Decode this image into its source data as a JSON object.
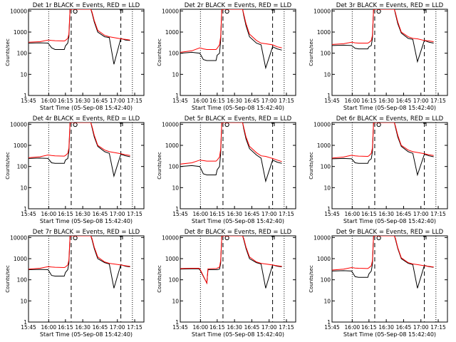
{
  "colors": {
    "events": "#000000",
    "lld": "#ff0000",
    "background": "#ffffff",
    "axes": "#000000"
  },
  "common": {
    "xlabel": "Start Time (05-Sep-08 15:42:40)",
    "ylabel": "Counts/sec",
    "x_ticks": [
      "15:45",
      "16:00",
      "16:15",
      "16:30",
      "16:45",
      "17:00",
      "17:15"
    ],
    "y_ticks": [
      "1",
      "10",
      "100",
      "1000",
      "10000"
    ],
    "series_names": [
      "Events",
      "LLD"
    ]
  },
  "chart_data": [
    {
      "type": "line",
      "title": "Det 1r BLACK = Events, RED = LLD",
      "xlabel": "Start Time (05-Sep-08 15:42:40)",
      "ylabel": "Counts/sec",
      "y_scale": "log",
      "ylim": [
        1,
        12000
      ],
      "xlim_minutes": [
        0,
        100
      ],
      "x": [
        0,
        10,
        17,
        20,
        23,
        31,
        32,
        34,
        35,
        36,
        40,
        45,
        47,
        50,
        53,
        54,
        55,
        57,
        60,
        66,
        70,
        74,
        80,
        84,
        88
      ],
      "series": [
        {
          "name": "Events",
          "values": [
            300,
            310,
            300,
            180,
            150,
            150,
            220,
            300,
            600,
            12000,
            12000,
            12000,
            12000,
            12000,
            12000,
            12000,
            8000,
            3000,
            1000,
            600,
            550,
            30,
            500,
            420,
            400
          ]
        },
        {
          "name": "LLD",
          "values": [
            330,
            350,
            420,
            400,
            390,
            380,
            400,
            500,
            800,
            12000,
            12000,
            12000,
            12000,
            12000,
            12000,
            12000,
            9000,
            3500,
            1200,
            700,
            600,
            550,
            480,
            450,
            420
          ]
        }
      ]
    },
    {
      "type": "line",
      "title": "Det 2r BLACK = Events, RED = LLD",
      "xlabel": "Start Time (05-Sep-08 15:42:40)",
      "ylabel": "Counts/sec",
      "y_scale": "log",
      "ylim": [
        1,
        12000
      ],
      "xlim_minutes": [
        0,
        100
      ],
      "x": [
        0,
        10,
        17,
        20,
        23,
        31,
        32,
        34,
        35,
        36,
        40,
        45,
        47,
        50,
        53,
        54,
        55,
        57,
        60,
        66,
        70,
        74,
        80,
        84,
        88
      ],
      "series": [
        {
          "name": "Events",
          "values": [
            100,
            110,
            100,
            50,
            45,
            45,
            80,
            100,
            400,
            12000,
            12000,
            12000,
            12000,
            12000,
            12000,
            12000,
            6000,
            2000,
            600,
            300,
            250,
            20,
            200,
            160,
            140
          ]
        },
        {
          "name": "LLD",
          "values": [
            110,
            130,
            180,
            160,
            150,
            150,
            170,
            250,
            600,
            12000,
            12000,
            12000,
            12000,
            12000,
            12000,
            12000,
            7000,
            2500,
            800,
            400,
            300,
            280,
            250,
            200,
            180
          ]
        }
      ]
    },
    {
      "type": "line",
      "title": "Det 3r BLACK = Events, RED = LLD",
      "xlabel": "Start Time (05-Sep-08 15:42:40)",
      "ylabel": "Counts/sec",
      "y_scale": "log",
      "ylim": [
        1,
        12000
      ],
      "xlim_minutes": [
        0,
        100
      ],
      "x": [
        0,
        10,
        17,
        20,
        23,
        31,
        32,
        34,
        35,
        36,
        40,
        45,
        47,
        50,
        53,
        54,
        55,
        57,
        60,
        66,
        70,
        74,
        80,
        84,
        88
      ],
      "series": [
        {
          "name": "Events",
          "values": [
            230,
            240,
            230,
            170,
            160,
            160,
            200,
            230,
            500,
            12000,
            12000,
            12000,
            12000,
            12000,
            12000,
            12000,
            7000,
            2500,
            900,
            500,
            450,
            40,
            400,
            330,
            300
          ]
        },
        {
          "name": "LLD",
          "values": [
            260,
            280,
            330,
            310,
            300,
            300,
            320,
            400,
            700,
            12000,
            12000,
            12000,
            12000,
            12000,
            12000,
            12000,
            8000,
            3000,
            1000,
            600,
            500,
            480,
            400,
            380,
            350
          ]
        }
      ]
    },
    {
      "type": "line",
      "title": "Det 4r BLACK = Events, RED = LLD",
      "xlabel": "Start Time (05-Sep-08 15:42:40)",
      "ylabel": "Counts/sec",
      "y_scale": "log",
      "ylim": [
        1,
        12000
      ],
      "xlim_minutes": [
        0,
        100
      ],
      "x": [
        0,
        10,
        17,
        20,
        23,
        31,
        32,
        34,
        35,
        36,
        40,
        45,
        47,
        50,
        53,
        54,
        55,
        57,
        60,
        66,
        70,
        74,
        80,
        84,
        88
      ],
      "series": [
        {
          "name": "Events",
          "values": [
            240,
            250,
            240,
            150,
            140,
            140,
            200,
            240,
            500,
            12000,
            12000,
            12000,
            12000,
            12000,
            12000,
            12000,
            7000,
            2500,
            900,
            500,
            420,
            35,
            380,
            320,
            290
          ]
        },
        {
          "name": "LLD",
          "values": [
            260,
            290,
            350,
            330,
            320,
            310,
            330,
            420,
            750,
            12000,
            12000,
            12000,
            12000,
            12000,
            12000,
            12000,
            8000,
            3000,
            1000,
            600,
            500,
            460,
            400,
            360,
            330
          ]
        }
      ]
    },
    {
      "type": "line",
      "title": "Det 5r BLACK = Events, RED = LLD",
      "xlabel": "Start Time (05-Sep-08 15:42:40)",
      "ylabel": "Counts/sec",
      "y_scale": "log",
      "ylim": [
        1,
        12000
      ],
      "xlim_minutes": [
        0,
        100
      ],
      "x": [
        0,
        10,
        17,
        20,
        23,
        31,
        32,
        34,
        35,
        36,
        40,
        45,
        47,
        50,
        53,
        54,
        55,
        57,
        60,
        66,
        70,
        74,
        80,
        84,
        88
      ],
      "series": [
        {
          "name": "Events",
          "values": [
            100,
            110,
            100,
            45,
            40,
            40,
            70,
            100,
            400,
            12000,
            12000,
            12000,
            12000,
            12000,
            12000,
            12000,
            6000,
            2000,
            700,
            350,
            250,
            20,
            200,
            160,
            140
          ]
        },
        {
          "name": "LLD",
          "values": [
            130,
            150,
            200,
            190,
            180,
            180,
            200,
            280,
            650,
            12000,
            12000,
            12000,
            12000,
            12000,
            12000,
            12000,
            7000,
            2500,
            900,
            450,
            320,
            300,
            240,
            200,
            170
          ]
        }
      ]
    },
    {
      "type": "line",
      "title": "Det 6r BLACK = Events, RED = LLD",
      "xlabel": "Start Time (05-Sep-08 15:42:40)",
      "ylabel": "Counts/sec",
      "y_scale": "log",
      "ylim": [
        1,
        12000
      ],
      "xlim_minutes": [
        0,
        100
      ],
      "x": [
        0,
        10,
        17,
        20,
        23,
        31,
        32,
        34,
        35,
        36,
        40,
        45,
        47,
        50,
        53,
        54,
        55,
        57,
        60,
        66,
        70,
        74,
        80,
        84,
        88
      ],
      "series": [
        {
          "name": "Events",
          "values": [
            230,
            240,
            230,
            150,
            140,
            140,
            190,
            230,
            500,
            12000,
            12000,
            12000,
            12000,
            12000,
            12000,
            12000,
            7000,
            2500,
            900,
            500,
            420,
            40,
            380,
            320,
            290
          ]
        },
        {
          "name": "LLD",
          "values": [
            250,
            280,
            340,
            320,
            310,
            300,
            320,
            420,
            750,
            12000,
            12000,
            12000,
            12000,
            12000,
            12000,
            12000,
            8000,
            3000,
            1000,
            600,
            500,
            460,
            400,
            360,
            330
          ]
        }
      ]
    },
    {
      "type": "line",
      "title": "Det 7r BLACK = Events, RED = LLD",
      "xlabel": "Start Time (05-Sep-08 15:42:40)",
      "ylabel": "Counts/sec",
      "y_scale": "log",
      "ylim": [
        1,
        12000
      ],
      "xlim_minutes": [
        0,
        100
      ],
      "x": [
        0,
        10,
        17,
        20,
        23,
        31,
        32,
        34,
        35,
        36,
        40,
        45,
        47,
        50,
        53,
        54,
        55,
        57,
        60,
        66,
        70,
        74,
        80,
        84,
        88
      ],
      "series": [
        {
          "name": "Events",
          "values": [
            300,
            310,
            300,
            160,
            150,
            150,
            220,
            300,
            600,
            12000,
            12000,
            12000,
            12000,
            12000,
            12000,
            12000,
            8000,
            3000,
            1000,
            650,
            560,
            40,
            520,
            440,
            410
          ]
        },
        {
          "name": "LLD",
          "values": [
            320,
            350,
            420,
            400,
            390,
            380,
            400,
            500,
            850,
            12000,
            12000,
            12000,
            12000,
            12000,
            12000,
            12000,
            9000,
            3500,
            1200,
            700,
            600,
            560,
            500,
            460,
            430
          ]
        }
      ]
    },
    {
      "type": "line",
      "title": "Det 8r BLACK = Events, RED = LLD",
      "xlabel": "Start Time (05-Sep-08 15:42:40)",
      "ylabel": "Counts/sec",
      "y_scale": "log",
      "ylim": [
        1,
        12000
      ],
      "xlim_minutes": [
        0,
        100
      ],
      "x": [
        0,
        10,
        16,
        17,
        23,
        24,
        31,
        32,
        34,
        35,
        36,
        40,
        45,
        47,
        50,
        53,
        54,
        55,
        57,
        60,
        66,
        70,
        74,
        80,
        84,
        88
      ],
      "series": [
        {
          "name": "Events",
          "values": [
            320,
            330,
            330,
            300,
            70,
            300,
            300,
            300,
            320,
            600,
            12000,
            12000,
            12000,
            12000,
            12000,
            12000,
            12000,
            8000,
            3000,
            1000,
            650,
            560,
            40,
            500,
            440,
            410
          ]
        },
        {
          "name": "LLD",
          "values": [
            340,
            350,
            350,
            330,
            70,
            330,
            340,
            350,
            400,
            800,
            12000,
            12000,
            12000,
            12000,
            12000,
            12000,
            12000,
            9000,
            3500,
            1200,
            700,
            600,
            560,
            500,
            460,
            430
          ]
        }
      ]
    },
    {
      "type": "line",
      "title": "Det 9r BLACK = Events, RED = LLD",
      "xlabel": "Start Time (05-Sep-08 15:42:40)",
      "ylabel": "Counts/sec",
      "y_scale": "log",
      "ylim": [
        1,
        12000
      ],
      "xlim_minutes": [
        0,
        100
      ],
      "x": [
        0,
        10,
        17,
        20,
        23,
        31,
        32,
        34,
        35,
        36,
        40,
        45,
        47,
        50,
        53,
        54,
        55,
        57,
        60,
        66,
        70,
        74,
        80,
        84,
        88
      ],
      "series": [
        {
          "name": "Events",
          "values": [
            260,
            270,
            260,
            140,
            130,
            130,
            190,
            260,
            550,
            12000,
            12000,
            12000,
            12000,
            12000,
            12000,
            12000,
            8000,
            3000,
            1000,
            600,
            520,
            40,
            480,
            420,
            390
          ]
        },
        {
          "name": "LLD",
          "values": [
            290,
            320,
            380,
            360,
            350,
            340,
            370,
            460,
            800,
            12000,
            12000,
            12000,
            12000,
            12000,
            12000,
            12000,
            9000,
            3300,
            1100,
            650,
            560,
            520,
            460,
            430,
            400
          ]
        }
      ]
    }
  ]
}
